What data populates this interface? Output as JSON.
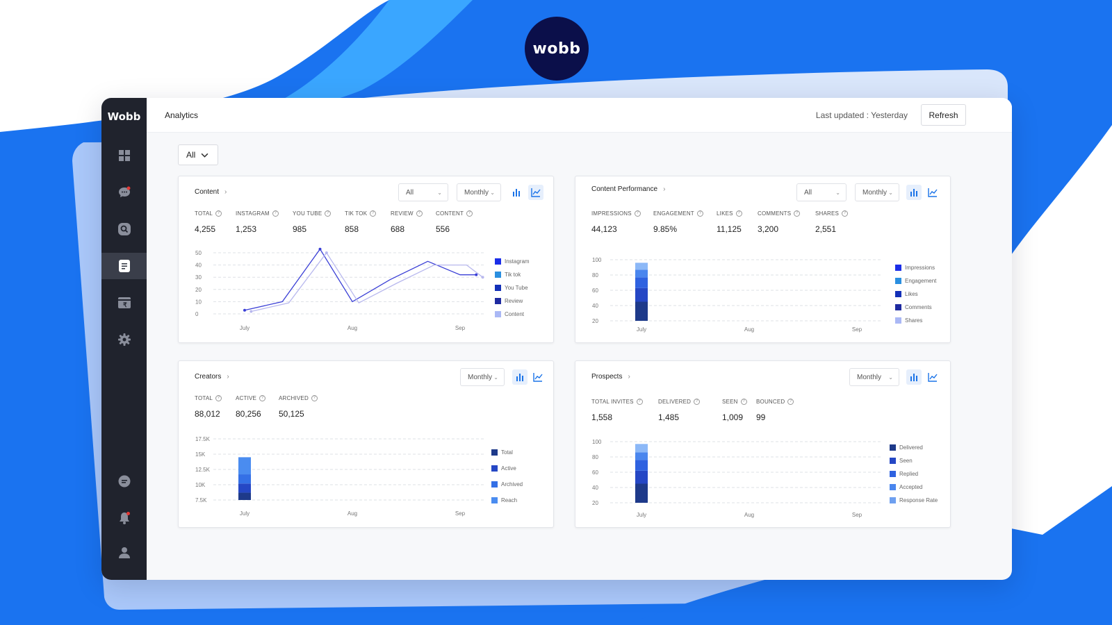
{
  "brand": {
    "logo_text": "wobb",
    "sidebar_brand": "Wobb"
  },
  "colors": {
    "accent": "#1a73e8",
    "sidebar": "#20232d",
    "badge": "#0b0f4a"
  },
  "sidebar": {
    "items": [
      {
        "icon": "dashboard-icon"
      },
      {
        "icon": "chat-icon"
      },
      {
        "icon": "search-icon"
      },
      {
        "icon": "analytics-doc-icon",
        "active": true
      },
      {
        "icon": "wallet-icon"
      },
      {
        "icon": "gear-icon"
      },
      {
        "icon": "support-chat-icon"
      },
      {
        "icon": "bell-icon"
      },
      {
        "icon": "user-icon"
      }
    ]
  },
  "header": {
    "title": "Analytics",
    "last_updated": "Last updated : Yesterday",
    "refresh_label": "Refresh"
  },
  "filter": {
    "value": "All"
  },
  "cards": {
    "content": {
      "title": "Content",
      "filter": "All",
      "period": "Monthly",
      "stats": [
        {
          "label": "TOTAL",
          "value": "4,255"
        },
        {
          "label": "INSTAGRAM",
          "value": "1,253"
        },
        {
          "label": "YOU TUBE",
          "value": "985"
        },
        {
          "label": "TIK TOK",
          "value": "858"
        },
        {
          "label": "REVIEW",
          "value": "688"
        },
        {
          "label": "CONTENT",
          "value": "556"
        }
      ],
      "legend": [
        "Instagram",
        "Tik tok",
        "You Tube",
        "Review",
        "Content"
      ]
    },
    "performance": {
      "title": "Content Performance",
      "filter": "All",
      "period": "Monthly",
      "stats": [
        {
          "label": "IMPRESSIONS",
          "value": "44,123"
        },
        {
          "label": "ENGAGEMENT",
          "value": "9.85%"
        },
        {
          "label": "LIKES",
          "value": "11,125"
        },
        {
          "label": "COMMENTS",
          "value": "3,200"
        },
        {
          "label": "SHARES",
          "value": "2,551"
        }
      ],
      "legend": [
        "Impressions",
        "Engagement",
        "Likes",
        "Comments",
        "Shares"
      ]
    },
    "creators": {
      "title": "Creators",
      "period": "Monthly",
      "stats": [
        {
          "label": "TOTAL",
          "value": "88,012"
        },
        {
          "label": "ACTIVE",
          "value": "80,256"
        },
        {
          "label": "ARCHIVED",
          "value": "50,125"
        }
      ],
      "legend": [
        "Total",
        "Active",
        "Archived",
        "Reach"
      ]
    },
    "prospects": {
      "title": "Prospects",
      "period": "Monthly",
      "stats": [
        {
          "label": "TOTAL INVITES",
          "value": "1,558"
        },
        {
          "label": "DELIVERED",
          "value": "1,485"
        },
        {
          "label": "SEEN",
          "value": "1,009"
        },
        {
          "label": "BOUNCED",
          "value": "99"
        }
      ],
      "legend": [
        "Delivered",
        "Seen",
        "Replied",
        "Accepted",
        "Response Rate"
      ]
    }
  },
  "chart_data": [
    {
      "type": "line",
      "categories": [
        "July",
        "Aug",
        "Sep"
      ],
      "yticks": [
        "0",
        "10",
        "20",
        "30",
        "40",
        "50"
      ],
      "ylim": [
        0,
        50
      ],
      "x": [
        0,
        0.35,
        0.7,
        1.0,
        1.35,
        1.7,
        2.0,
        2.15
      ],
      "series": [
        {
          "name": "Instagram",
          "color": "#3a3fd6",
          "values": [
            3,
            10,
            53,
            10,
            28,
            43,
            32,
            32
          ]
        },
        {
          "name": "Content",
          "color": "#b8b8ee",
          "values": [
            2,
            9,
            50,
            9,
            25,
            40,
            40,
            30
          ],
          "offset": 0.06
        }
      ],
      "legend_colors": [
        "#1b2ee8",
        "#2a8fe0",
        "#1330b8",
        "#1e2aa0",
        "#aab8f5"
      ]
    },
    {
      "type": "bar",
      "categories": [
        "July",
        "Aug",
        "Sep"
      ],
      "yticks": [
        "20",
        "40",
        "60",
        "80",
        "100"
      ],
      "ylim": [
        20,
        100
      ],
      "stack": {
        "category": "July",
        "segments": [
          {
            "value": 25,
            "color": "#1e3a8a"
          },
          {
            "value": 18,
            "color": "#2547c5"
          },
          {
            "value": 14,
            "color": "#2f62e0"
          },
          {
            "value": 10,
            "color": "#4a86ee"
          },
          {
            "value": 9,
            "color": "#8cb8f7"
          }
        ]
      },
      "legend_colors": [
        "#1b2ee8",
        "#2a8fe0",
        "#1330b8",
        "#1e2aa0",
        "#aab8f5"
      ]
    },
    {
      "type": "bar",
      "categories": [
        "July",
        "Aug",
        "Sep"
      ],
      "yticks": [
        "7.5K",
        "10K",
        "12.5K",
        "15K",
        "17.5K"
      ],
      "ylim": [
        7.5,
        17.5
      ],
      "stack": {
        "category": "July",
        "segments": [
          {
            "value": 1.2,
            "color": "#1e3a8a"
          },
          {
            "value": 1.5,
            "color": "#2547c5"
          },
          {
            "value": 1.5,
            "color": "#3470e6"
          },
          {
            "value": 2.8,
            "color": "#4a8cf0"
          }
        ]
      },
      "legend_colors": [
        "#1e3a8a",
        "#2547c5",
        "#3470e6",
        "#4a8cf0"
      ]
    },
    {
      "type": "bar",
      "categories": [
        "July",
        "Aug",
        "Sep"
      ],
      "yticks": [
        "20",
        "40",
        "60",
        "80",
        "100"
      ],
      "ylim": [
        20,
        100
      ],
      "stack": {
        "category": "July",
        "segments": [
          {
            "value": 25,
            "color": "#1e3a8a"
          },
          {
            "value": 17,
            "color": "#2547c5"
          },
          {
            "value": 14,
            "color": "#2f62e0"
          },
          {
            "value": 10,
            "color": "#4a86ee"
          },
          {
            "value": 11,
            "color": "#8cb8f7"
          }
        ]
      },
      "legend_colors": [
        "#1e3a8a",
        "#2547c5",
        "#2f62e0",
        "#4a86ee",
        "#6ea0f0"
      ]
    }
  ]
}
